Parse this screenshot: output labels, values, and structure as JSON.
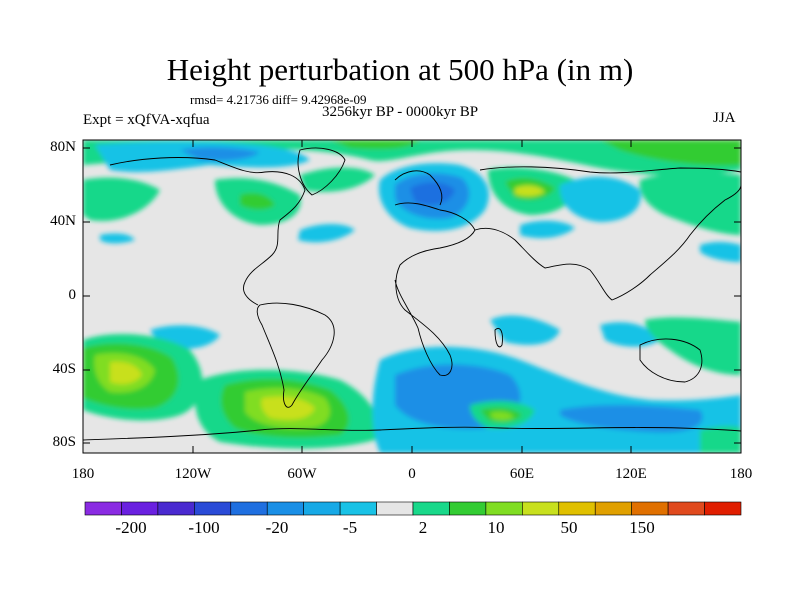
{
  "title": "Height perturbation at 500 hPa (in m)",
  "stats": "rmsd= 4.21736 diff= 9.42968e-09",
  "period": "3256kyr BP - 0000kyr BP",
  "experiment": "Expt = xQfVA-xqfua",
  "season": "JJA",
  "lat_labels": [
    "80N",
    "40N",
    "0",
    "40S",
    "80S"
  ],
  "lon_labels": [
    "180",
    "120W",
    "60W",
    "0",
    "60E",
    "120E",
    "180"
  ],
  "colorbar": {
    "colors": [
      "#8a2be2",
      "#6a20e0",
      "#4a2ad0",
      "#2a4bd7",
      "#1f6fe0",
      "#1a8fe6",
      "#17a9e6",
      "#19c2e6",
      "#e6e6e6",
      "#19d88a",
      "#33cc33",
      "#80dd22",
      "#c8e01e",
      "#e0c000",
      "#e0a000",
      "#e07000",
      "#e04a1e",
      "#e01e00"
    ],
    "labels": [
      "-200",
      "-100",
      "-20",
      "-5",
      "2",
      "10",
      "50",
      "150"
    ]
  },
  "map": {
    "background": "#e6e6e6",
    "regions": [
      {
        "name": "north-atlantic-low",
        "color": "#19c2e6"
      },
      {
        "name": "europe-low",
        "color": "#1f6fe0"
      },
      {
        "name": "southern-ocean-low",
        "color": "#19c2e6"
      }
    ]
  }
}
